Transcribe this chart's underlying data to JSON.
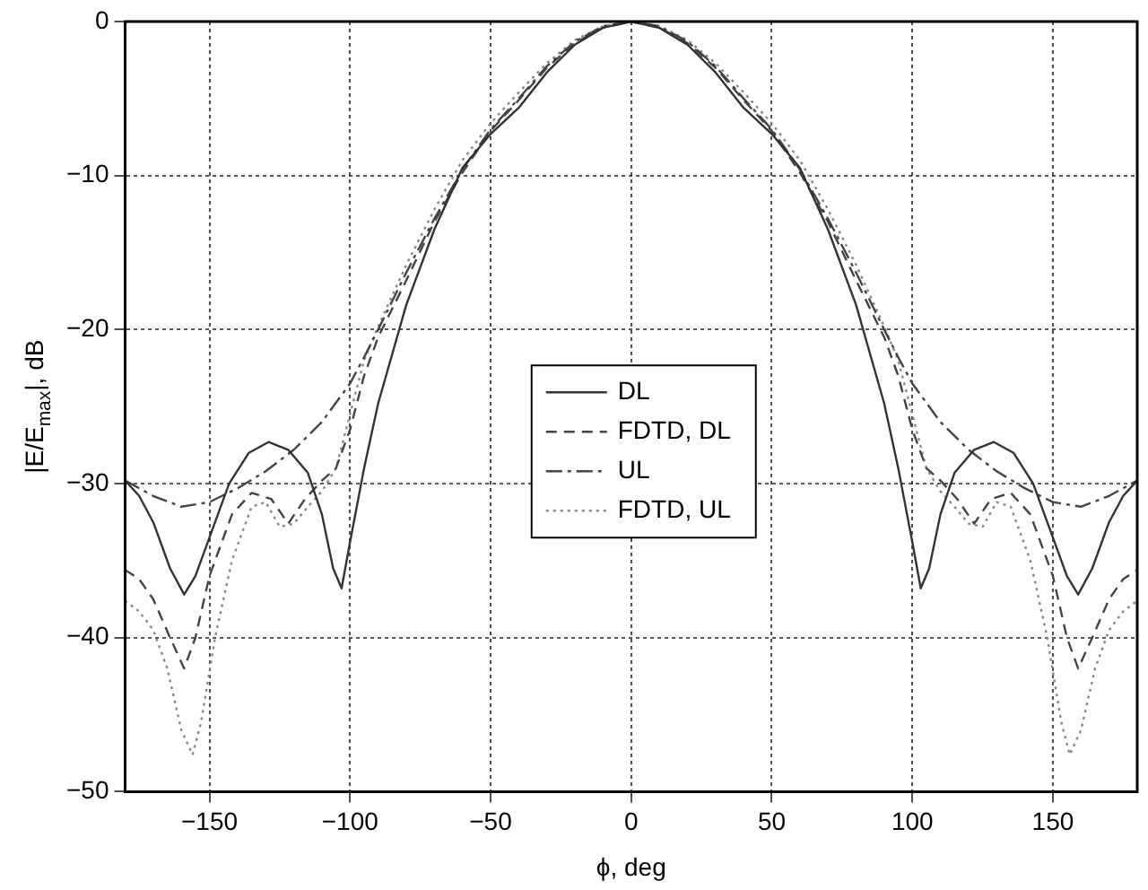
{
  "chart_data": {
    "type": "line",
    "xlabel": "ϕ, deg",
    "ylabel": "|E/E$_{max}$|, dB",
    "xlim": [
      -180,
      180
    ],
    "xticks": [
      -150,
      -100,
      -50,
      0,
      50,
      100,
      150
    ],
    "ylim": [
      -50,
      0
    ],
    "yticks": [
      -50,
      -40,
      -30,
      -20,
      -10,
      0
    ],
    "grid": true,
    "legend": "center",
    "marker": "none",
    "series": [
      {
        "name": "DL",
        "color": "#333333",
        "line_style": "solid",
        "x": [
          -180,
          -175,
          -170,
          -164,
          -159,
          -155,
          -150,
          -143,
          -136,
          -129,
          -122,
          -115,
          -110,
          -106,
          -103,
          -100,
          -95,
          -90,
          -80,
          -70,
          -60,
          -50,
          -40,
          -30,
          -20,
          -10,
          0,
          10,
          20,
          30,
          40,
          50,
          60,
          70,
          80,
          90,
          95,
          100,
          103,
          106,
          110,
          115,
          122,
          129,
          136,
          143,
          150,
          155,
          159,
          164,
          170,
          175,
          180
        ],
        "values": [
          -29.8,
          -30.8,
          -32.5,
          -35.5,
          -37.2,
          -36,
          -33.5,
          -30,
          -28,
          -27.3,
          -27.8,
          -29.3,
          -32,
          -35.5,
          -36.8,
          -33.8,
          -29,
          -24.8,
          -18.4,
          -13.5,
          -9.5,
          -7.3,
          -5.6,
          -3.3,
          -1.5,
          -0.4,
          0,
          -0.4,
          -1.5,
          -3.3,
          -5.6,
          -7.3,
          -9.5,
          -13.5,
          -18.4,
          -24.8,
          -29,
          -33.8,
          -36.8,
          -35.5,
          -32,
          -29.3,
          -27.8,
          -27.3,
          -28,
          -30,
          -33.5,
          -36,
          -37.2,
          -35.5,
          -32.5,
          -30.8,
          -29.8
        ]
      },
      {
        "name": "FDTD, DL",
        "color": "#444444",
        "line_style": "dashed",
        "x": [
          -180,
          -175,
          -170,
          -164,
          -159,
          -155,
          -150,
          -142,
          -135,
          -128,
          -122,
          -116,
          -110,
          -105,
          -100,
          -95,
          -90,
          -80,
          -70,
          -60,
          -50,
          -40,
          -30,
          -20,
          -10,
          0,
          10,
          20,
          30,
          40,
          50,
          60,
          70,
          80,
          90,
          95,
          100,
          105,
          110,
          116,
          122,
          128,
          135,
          142,
          150,
          155,
          159,
          164,
          170,
          175,
          180
        ],
        "values": [
          -35.6,
          -36.2,
          -37.5,
          -40,
          -42,
          -40,
          -36,
          -32,
          -30.6,
          -31,
          -32.6,
          -31,
          -29.8,
          -29,
          -26.5,
          -23,
          -20.5,
          -16.8,
          -13,
          -9.8,
          -7.1,
          -5.1,
          -3,
          -1.4,
          -0.4,
          0,
          -0.4,
          -1.4,
          -3,
          -5.1,
          -7.1,
          -9.8,
          -13,
          -16.8,
          -20.5,
          -23,
          -26.5,
          -29,
          -29.8,
          -31,
          -32.6,
          -31,
          -30.6,
          -32,
          -36,
          -40,
          -42,
          -40,
          -37.5,
          -36.2,
          -35.6
        ]
      },
      {
        "name": "UL",
        "color": "#444444",
        "line_style": "dashdot",
        "x": [
          -180,
          -170,
          -160,
          -150,
          -140,
          -130,
          -120,
          -110,
          -100,
          -95,
          -90,
          -80,
          -70,
          -60,
          -50,
          -40,
          -30,
          -20,
          -10,
          0,
          10,
          20,
          30,
          40,
          50,
          60,
          70,
          80,
          90,
          95,
          100,
          110,
          120,
          130,
          140,
          150,
          160,
          170,
          180
        ],
        "values": [
          -29.8,
          -30.8,
          -31.5,
          -31.2,
          -30.3,
          -29.2,
          -27.8,
          -26,
          -23.5,
          -21.8,
          -20,
          -16.3,
          -12.8,
          -9.6,
          -7,
          -5,
          -2.9,
          -1.3,
          -0.3,
          0,
          -0.3,
          -1.3,
          -2.9,
          -5,
          -7,
          -9.6,
          -12.8,
          -16.3,
          -20,
          -21.8,
          -23.5,
          -26,
          -27.8,
          -29.2,
          -30.3,
          -31.2,
          -31.5,
          -30.8,
          -29.8
        ]
      },
      {
        "name": "FDTD, UL",
        "color": "#888888",
        "line_style": "dotted",
        "x": [
          -180,
          -175,
          -170,
          -165,
          -160,
          -156,
          -153,
          -148,
          -142,
          -135,
          -130,
          -125,
          -120,
          -115,
          -110,
          -105,
          -100,
          -95,
          -90,
          -80,
          -70,
          -60,
          -50,
          -40,
          -30,
          -20,
          -10,
          0,
          10,
          20,
          30,
          40,
          50,
          60,
          70,
          80,
          90,
          95,
          100,
          105,
          110,
          115,
          120,
          125,
          130,
          135,
          142,
          148,
          153,
          156,
          160,
          165,
          170,
          175,
          180
        ],
        "values": [
          -37.6,
          -38.3,
          -39.5,
          -42,
          -46,
          -47.6,
          -45.5,
          -40,
          -35,
          -31.5,
          -31.2,
          -32.8,
          -32.6,
          -31.5,
          -30.5,
          -29,
          -25.5,
          -22,
          -19.8,
          -15.8,
          -12.2,
          -9,
          -6.6,
          -4.6,
          -2.7,
          -1.2,
          -0.3,
          0,
          -0.3,
          -1.2,
          -2.7,
          -4.6,
          -6.6,
          -9,
          -12.2,
          -15.8,
          -19.8,
          -22,
          -25.5,
          -29,
          -30.5,
          -31.5,
          -32.6,
          -32.8,
          -31.2,
          -31.5,
          -35,
          -40,
          -45.5,
          -47.6,
          -46,
          -42,
          -39.5,
          -38.3,
          -37.6
        ]
      }
    ]
  }
}
